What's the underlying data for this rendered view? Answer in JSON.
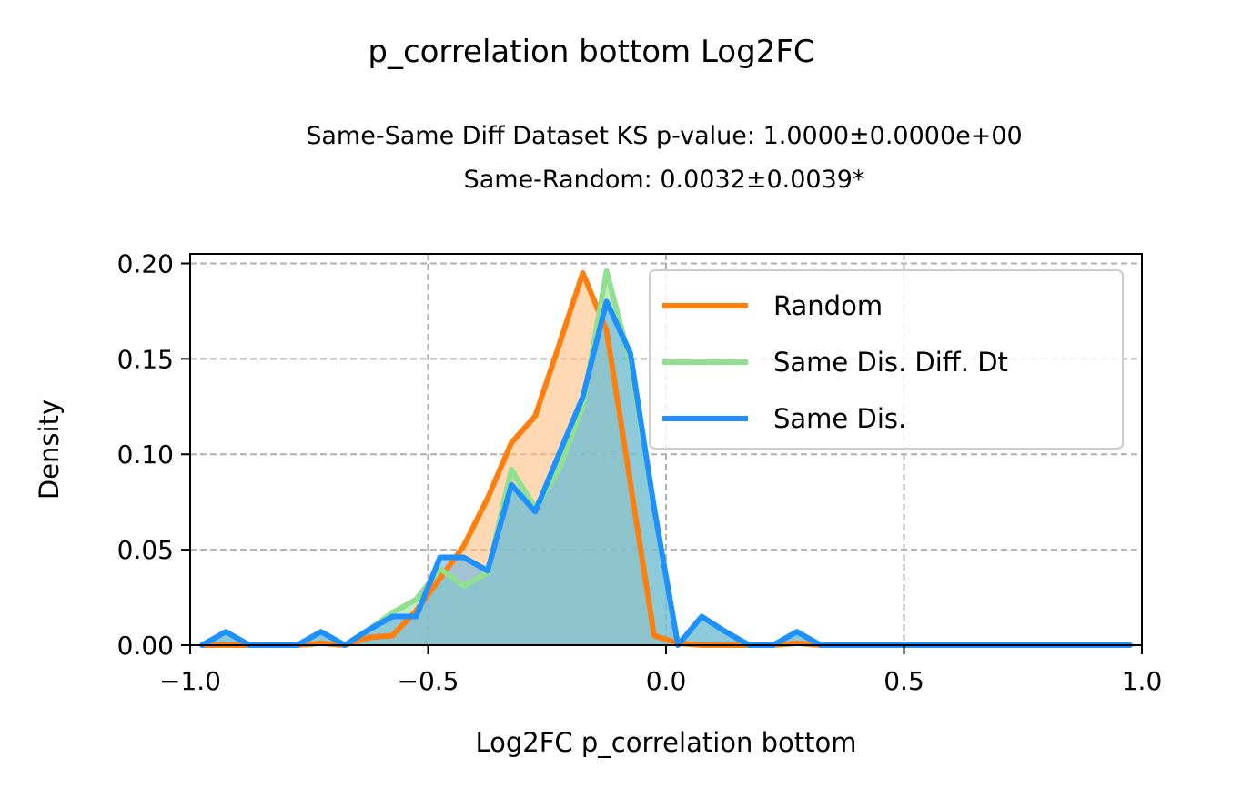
{
  "chart_data": {
    "type": "line",
    "title": "p_correlation bottom Log2FC",
    "subtitle_lines": [
      "Same-Same Diff Dataset  KS p-value: 1.0000±0.0000e+00",
      "Same-Random: 0.0032±0.0039*"
    ],
    "xlabel": "Log2FC p_correlation bottom",
    "ylabel": "Density",
    "xlim": [
      -1.0,
      1.0
    ],
    "ylim": [
      0.0,
      0.205
    ],
    "xticks": [
      -1.0,
      -0.5,
      0.0,
      0.5,
      1.0
    ],
    "xtick_labels": [
      "−1.0",
      "−0.5",
      "0.0",
      "0.5",
      "1.0"
    ],
    "yticks": [
      0.0,
      0.05,
      0.1,
      0.15,
      0.2
    ],
    "ytick_labels": [
      "0.00",
      "0.05",
      "0.10",
      "0.15",
      "0.20"
    ],
    "grid": true,
    "legend_position": "top-right",
    "series": [
      {
        "name": "Random",
        "color": "#ff7f0e",
        "fill": "#ffbf80",
        "x": [
          -0.975,
          -0.925,
          -0.875,
          -0.825,
          -0.775,
          -0.725,
          -0.675,
          -0.625,
          -0.575,
          -0.525,
          -0.475,
          -0.425,
          -0.375,
          -0.325,
          -0.275,
          -0.225,
          -0.175,
          -0.125,
          -0.075,
          -0.025,
          0.025,
          0.075,
          0.125,
          0.175,
          0.225,
          0.275,
          0.325,
          0.375,
          0.425,
          0.475,
          0.525,
          0.575,
          0.625,
          0.675,
          0.725,
          0.775,
          0.825,
          0.875,
          0.925,
          0.975
        ],
        "y": [
          0.0,
          0.0,
          0.0,
          0.0,
          0.0,
          0.001,
          0.0,
          0.004,
          0.005,
          0.018,
          0.035,
          0.052,
          0.077,
          0.106,
          0.12,
          0.157,
          0.195,
          0.165,
          0.085,
          0.005,
          0.001,
          0.0,
          0.0,
          0.0,
          0.0,
          0.001,
          0.0,
          0.0,
          0.0,
          0.0,
          0.0,
          0.0,
          0.0,
          0.0,
          0.0,
          0.0,
          0.0,
          0.0,
          0.0,
          0.0
        ]
      },
      {
        "name": "Same Dis. Diff. Dt",
        "color": "#90e090",
        "fill": "#a0dca0",
        "x": [
          -0.975,
          -0.925,
          -0.875,
          -0.825,
          -0.775,
          -0.725,
          -0.675,
          -0.625,
          -0.575,
          -0.525,
          -0.475,
          -0.425,
          -0.375,
          -0.325,
          -0.275,
          -0.225,
          -0.175,
          -0.125,
          -0.075,
          -0.025,
          0.025,
          0.075,
          0.125,
          0.175,
          0.225,
          0.275,
          0.325,
          0.375,
          0.425,
          0.475,
          0.525,
          0.575,
          0.625,
          0.675,
          0.725,
          0.775,
          0.825,
          0.875,
          0.925,
          0.975
        ],
        "y": [
          0.0,
          0.007,
          0.0,
          0.0,
          0.0,
          0.007,
          0.0,
          0.008,
          0.017,
          0.024,
          0.04,
          0.031,
          0.038,
          0.092,
          0.072,
          0.092,
          0.125,
          0.196,
          0.148,
          0.072,
          0.0,
          0.015,
          0.007,
          0.0,
          0.0,
          0.007,
          0.0,
          0.0,
          0.0,
          0.0,
          0.0,
          0.0,
          0.0,
          0.0,
          0.0,
          0.0,
          0.0,
          0.0,
          0.0,
          0.0
        ]
      },
      {
        "name": "Same Dis.",
        "color": "#1e90ff",
        "fill": "#66b3e6",
        "x": [
          -0.975,
          -0.925,
          -0.875,
          -0.825,
          -0.775,
          -0.725,
          -0.675,
          -0.625,
          -0.575,
          -0.525,
          -0.475,
          -0.425,
          -0.375,
          -0.325,
          -0.275,
          -0.225,
          -0.175,
          -0.125,
          -0.075,
          -0.025,
          0.025,
          0.075,
          0.125,
          0.175,
          0.225,
          0.275,
          0.325,
          0.375,
          0.425,
          0.475,
          0.525,
          0.575,
          0.625,
          0.675,
          0.725,
          0.775,
          0.825,
          0.875,
          0.925,
          0.975
        ],
        "y": [
          0.0,
          0.007,
          0.0,
          0.0,
          0.0,
          0.007,
          0.0,
          0.008,
          0.015,
          0.015,
          0.046,
          0.046,
          0.039,
          0.084,
          0.07,
          0.1,
          0.13,
          0.18,
          0.153,
          0.072,
          0.0,
          0.015,
          0.007,
          0.0,
          0.0,
          0.007,
          0.0,
          0.0,
          0.0,
          0.0,
          0.0,
          0.0,
          0.0,
          0.0,
          0.0,
          0.0,
          0.0,
          0.0,
          0.0,
          0.0
        ]
      }
    ]
  }
}
